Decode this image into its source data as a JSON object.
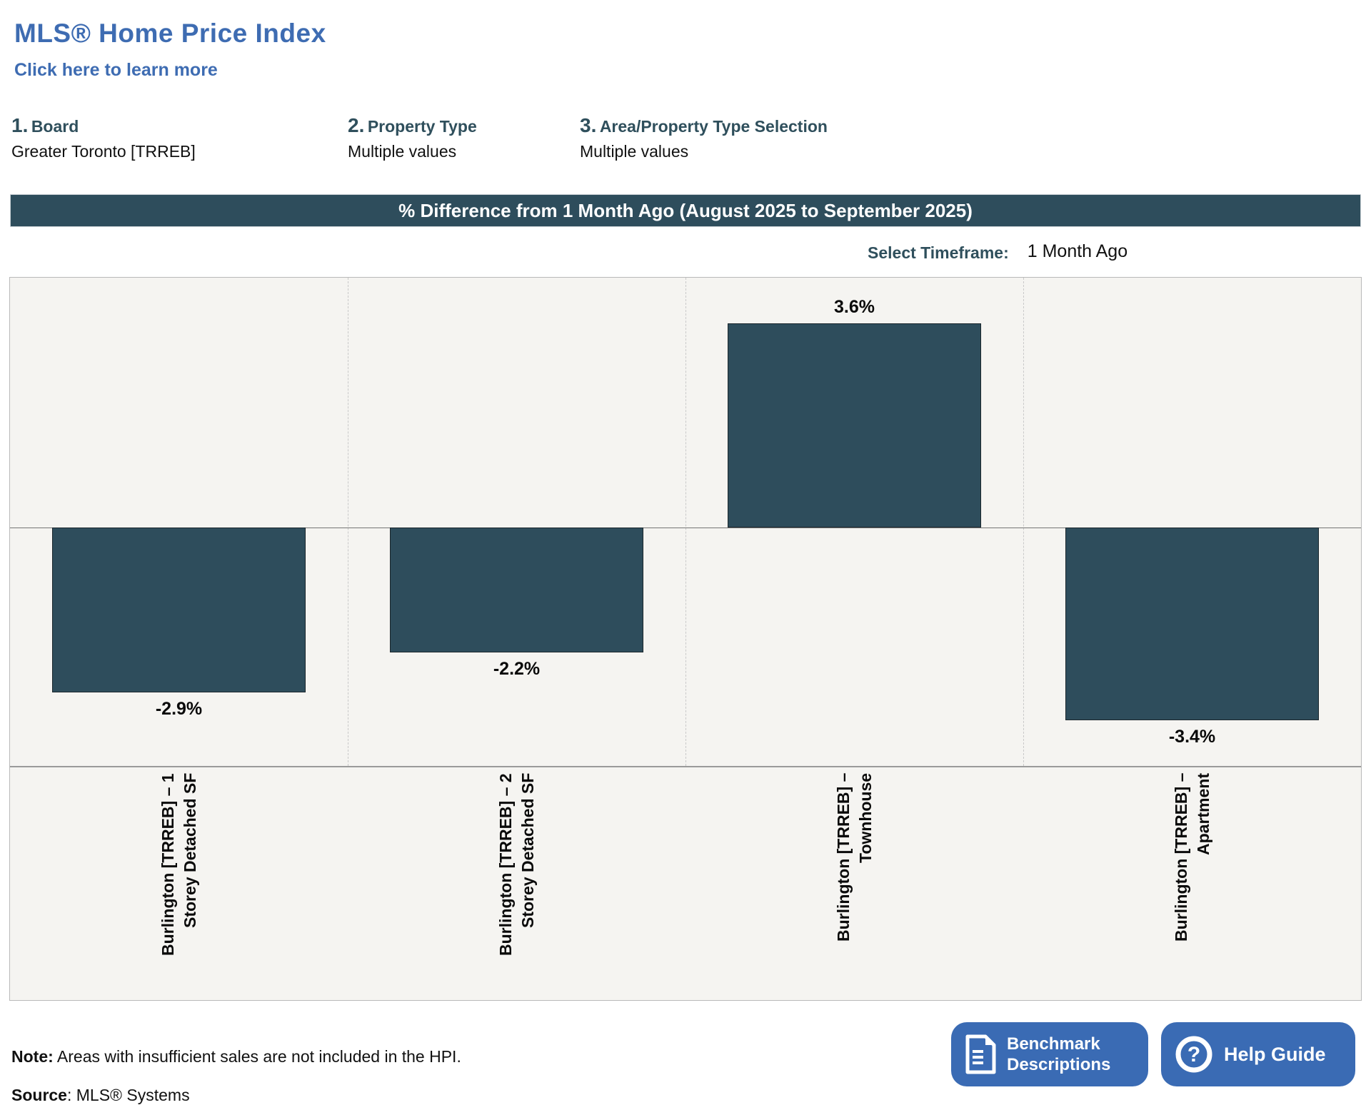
{
  "header": {
    "title": "MLS® Home Price Index",
    "learn_more": "Click here to learn more"
  },
  "filters": [
    {
      "number": "1.",
      "label": "Board",
      "value": "Greater Toronto [TRREB]"
    },
    {
      "number": "2.",
      "label": "Property Type",
      "value": "Multiple values"
    },
    {
      "number": "3.",
      "label": "Area/Property Type Selection",
      "value": "Multiple values"
    }
  ],
  "banner": {
    "title": "% Difference from 1 Month Ago (August 2025 to September 2025)"
  },
  "timeframe": {
    "label": "Select Timeframe:",
    "value": "1 Month Ago"
  },
  "chart_data": {
    "type": "bar",
    "title": "% Difference from 1 Month Ago (August 2025 to September 2025)",
    "categories": [
      [
        "Burlington [TRREB] – 1",
        "Storey Detached SF"
      ],
      [
        "Burlington [TRREB] – 2",
        "Storey Detached SF"
      ],
      [
        "Burlington [TRREB] –",
        "Townhouse"
      ],
      [
        "Burlington [TRREB] –",
        "Apartment"
      ]
    ],
    "values": [
      -2.9,
      -2.2,
      3.6,
      -3.4
    ],
    "labels": [
      "-2.9%",
      "-2.2%",
      "3.6%",
      "-3.4%"
    ],
    "xlabel": "",
    "ylabel": "",
    "ylim": [
      -4.2,
      4.4
    ],
    "y_axis_visible": false,
    "grid": "vertical-dashed-column-dividers",
    "legend": "none",
    "bar_color": "#2e4d5c",
    "plot_background": "#f5f4f1"
  },
  "note": {
    "bold": "Note:",
    "text": " Areas with insufficient sales are not included in the HPI."
  },
  "source": {
    "bold": "Source",
    "text": ": MLS® Systems"
  },
  "buttons": {
    "benchmark": {
      "lines": [
        "Benchmark",
        "Descriptions"
      ],
      "icon": "document-icon"
    },
    "help": {
      "label": "Help Guide",
      "icon": "question-mark-icon"
    }
  },
  "colors": {
    "title_blue": "#3e6cb2",
    "banner_bg": "#2e4d5c",
    "header_slate": "#2f4f5c",
    "button_blue": "#3a6bb4",
    "bar_color": "#2e4d5c"
  }
}
